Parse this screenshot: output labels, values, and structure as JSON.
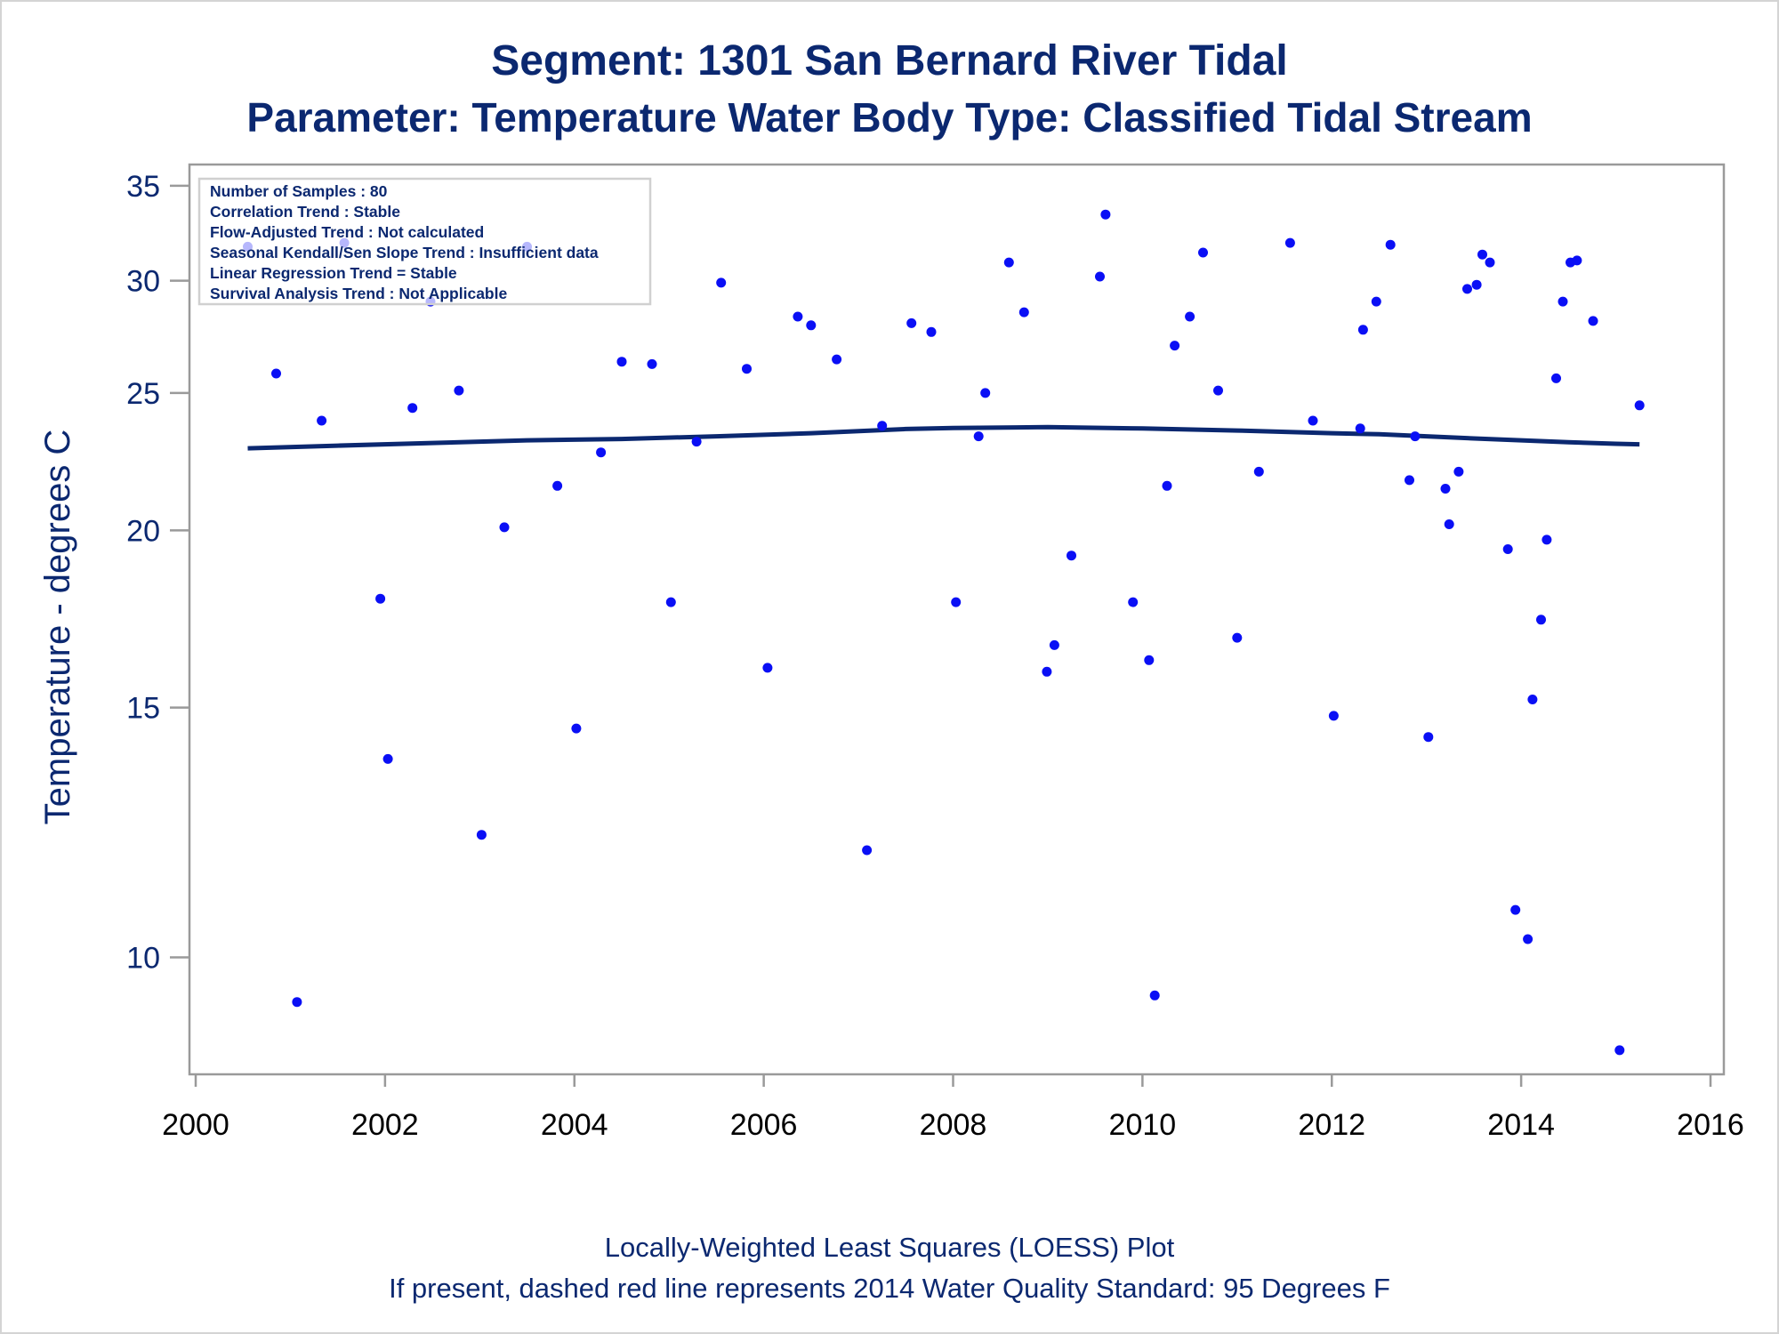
{
  "titles": {
    "line1": "Segment: 1301  San Bernard River Tidal",
    "line2": "Parameter: Temperature   Water Body Type: Classified Tidal Stream"
  },
  "footnotes": {
    "line1": "Locally-Weighted Least Squares (LOESS) Plot",
    "line2": "If present, dashed red line represents 2014 Water Quality Standard: 95   Degrees F"
  },
  "stats_box": {
    "lines": [
      "Number of Samples : 80",
      "Correlation Trend : Stable",
      "Flow-Adjusted Trend : Not calculated",
      "Seasonal Kendall/Sen Slope Trend : Insufficient data",
      "Linear Regression Trend = Stable",
      "Survival Analysis Trend : Not Applicable"
    ]
  },
  "colors": {
    "title": "#0b2870",
    "points": "#0a0ff5",
    "loess": "#0b2870",
    "axis": "#9a9a9a"
  },
  "chart_data": {
    "type": "scatter",
    "ylabel": "Temperature - degrees C",
    "xlabel": "",
    "x_scale": "linear",
    "y_scale": "log",
    "xlim": [
      2000,
      2016
    ],
    "ylim": [
      8.5,
      35.5
    ],
    "x_ticks": [
      "2000",
      "2002",
      "2004",
      "2006",
      "2008",
      "2010",
      "2012",
      "2014",
      "2016"
    ],
    "y_ticks": [
      "10",
      "15",
      "20",
      "25",
      "30",
      "35"
    ],
    "grid": false,
    "series": [
      {
        "type": "scatter",
        "points": [
          [
            2000.55,
            31.7
          ],
          [
            2000.85,
            25.8
          ],
          [
            2001.07,
            9.3
          ],
          [
            2001.33,
            23.9
          ],
          [
            2001.57,
            31.9
          ],
          [
            2001.95,
            17.9
          ],
          [
            2002.03,
            13.8
          ],
          [
            2002.29,
            24.4
          ],
          [
            2002.48,
            29.0
          ],
          [
            2002.78,
            25.1
          ],
          [
            2003.02,
            12.2
          ],
          [
            2003.26,
            20.1
          ],
          [
            2003.5,
            31.7
          ],
          [
            2003.82,
            21.5
          ],
          [
            2004.02,
            14.5
          ],
          [
            2004.28,
            22.7
          ],
          [
            2004.5,
            26.3
          ],
          [
            2004.82,
            26.2
          ],
          [
            2005.02,
            17.8
          ],
          [
            2005.29,
            23.1
          ],
          [
            2005.55,
            29.9
          ],
          [
            2005.82,
            26.0
          ],
          [
            2006.04,
            16.0
          ],
          [
            2006.36,
            28.3
          ],
          [
            2006.5,
            27.9
          ],
          [
            2006.77,
            26.4
          ],
          [
            2007.09,
            11.9
          ],
          [
            2007.25,
            23.7
          ],
          [
            2007.56,
            28.0
          ],
          [
            2007.77,
            27.6
          ],
          [
            2008.03,
            17.8
          ],
          [
            2008.27,
            23.3
          ],
          [
            2008.34,
            25.0
          ],
          [
            2008.59,
            30.9
          ],
          [
            2008.75,
            28.5
          ],
          [
            2008.99,
            15.9
          ],
          [
            2009.07,
            16.6
          ],
          [
            2009.25,
            19.2
          ],
          [
            2009.55,
            30.2
          ],
          [
            2009.61,
            33.4
          ],
          [
            2009.9,
            17.8
          ],
          [
            2010.07,
            16.2
          ],
          [
            2010.13,
            9.4
          ],
          [
            2010.26,
            21.5
          ],
          [
            2010.34,
            27.0
          ],
          [
            2010.5,
            28.3
          ],
          [
            2010.64,
            31.4
          ],
          [
            2010.8,
            25.1
          ],
          [
            2011.0,
            16.8
          ],
          [
            2011.23,
            22.0
          ],
          [
            2011.56,
            31.9
          ],
          [
            2011.8,
            23.9
          ],
          [
            2012.02,
            14.8
          ],
          [
            2012.3,
            23.6
          ],
          [
            2012.33,
            27.7
          ],
          [
            2012.47,
            29.0
          ],
          [
            2012.62,
            31.8
          ],
          [
            2012.82,
            21.7
          ],
          [
            2012.88,
            23.3
          ],
          [
            2013.02,
            14.3
          ],
          [
            2013.2,
            21.4
          ],
          [
            2013.24,
            20.2
          ],
          [
            2013.34,
            22.0
          ],
          [
            2013.43,
            29.6
          ],
          [
            2013.53,
            29.8
          ],
          [
            2013.59,
            31.3
          ],
          [
            2013.67,
            30.9
          ],
          [
            2013.86,
            19.4
          ],
          [
            2013.94,
            10.8
          ],
          [
            2014.07,
            10.3
          ],
          [
            2014.12,
            15.2
          ],
          [
            2014.21,
            17.3
          ],
          [
            2014.27,
            19.7
          ],
          [
            2014.37,
            25.6
          ],
          [
            2014.44,
            29.0
          ],
          [
            2014.52,
            30.9
          ],
          [
            2014.59,
            31.0
          ],
          [
            2014.76,
            28.1
          ],
          [
            2015.04,
            8.6
          ],
          [
            2015.25,
            24.5
          ]
        ]
      },
      {
        "type": "line",
        "points": [
          [
            2000.55,
            22.85
          ],
          [
            2001.5,
            22.95
          ],
          [
            2002.5,
            23.05
          ],
          [
            2003.5,
            23.15
          ],
          [
            2004.5,
            23.2
          ],
          [
            2005.5,
            23.3
          ],
          [
            2006.5,
            23.42
          ],
          [
            2007.5,
            23.58
          ],
          [
            2008.0,
            23.62
          ],
          [
            2009.0,
            23.65
          ],
          [
            2010.0,
            23.6
          ],
          [
            2011.0,
            23.52
          ],
          [
            2012.0,
            23.42
          ],
          [
            2012.5,
            23.38
          ],
          [
            2013.0,
            23.3
          ],
          [
            2013.5,
            23.22
          ],
          [
            2014.0,
            23.15
          ],
          [
            2014.5,
            23.08
          ],
          [
            2015.0,
            23.02
          ],
          [
            2015.25,
            23.0
          ]
        ]
      }
    ]
  }
}
